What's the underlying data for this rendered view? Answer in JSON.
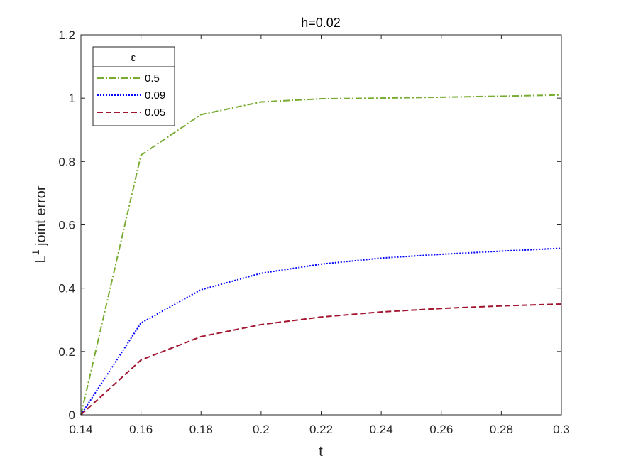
{
  "chart_data": {
    "type": "line",
    "title": "h=0.02",
    "xlabel": "t",
    "ylabel_main": "L",
    "ylabel_sup": "1",
    "ylabel_rest": " joint error",
    "xlim": [
      0.14,
      0.3
    ],
    "ylim": [
      0,
      1.2
    ],
    "xticks": [
      0.14,
      0.16,
      0.18,
      0.2,
      0.22,
      0.24,
      0.26,
      0.28,
      0.3
    ],
    "xtick_labels": [
      "0.14",
      "0.16",
      "0.18",
      "0.2",
      "0.22",
      "0.24",
      "0.26",
      "0.28",
      "0.3"
    ],
    "yticks": [
      0,
      0.2,
      0.4,
      0.6,
      0.8,
      1,
      1.2
    ],
    "ytick_labels": [
      "0",
      "0.2",
      "0.4",
      "0.6",
      "0.8",
      "1",
      "1.2"
    ],
    "grid": false,
    "legend_title": "ε",
    "legend_position": "top-left",
    "series": [
      {
        "name": "0.5",
        "color": "#77ac30",
        "style": "dash-dot",
        "x": [
          0.14,
          0.16,
          0.18,
          0.2,
          0.22,
          0.24,
          0.26,
          0.28,
          0.3
        ],
        "y": [
          0,
          0.82,
          0.948,
          0.988,
          0.998,
          1.0,
          1.003,
          1.006,
          1.01
        ]
      },
      {
        "name": "0.09",
        "color": "#0000ff",
        "style": "dotted",
        "x": [
          0.14,
          0.16,
          0.18,
          0.2,
          0.22,
          0.24,
          0.26,
          0.28,
          0.3
        ],
        "y": [
          0,
          0.29,
          0.395,
          0.447,
          0.476,
          0.495,
          0.507,
          0.517,
          0.526
        ]
      },
      {
        "name": "0.05",
        "color": "#a2142f",
        "style": "dashed",
        "x": [
          0.14,
          0.16,
          0.18,
          0.2,
          0.22,
          0.24,
          0.26,
          0.28,
          0.3
        ],
        "y": [
          0,
          0.173,
          0.247,
          0.285,
          0.309,
          0.325,
          0.336,
          0.344,
          0.35
        ]
      }
    ]
  }
}
